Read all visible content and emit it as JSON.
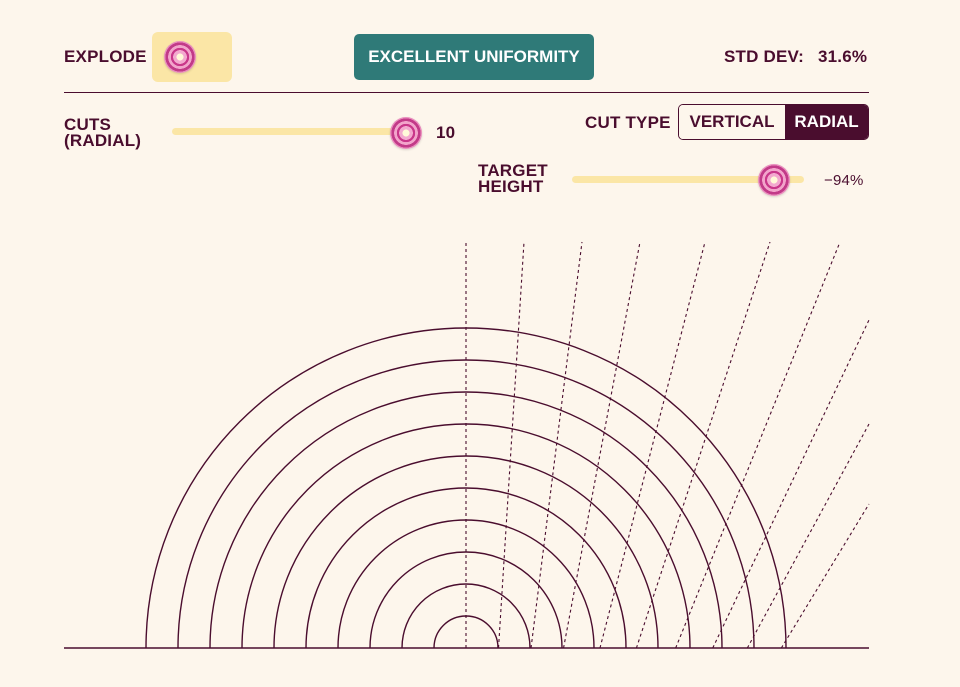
{
  "controls": {
    "explode_label": "EXPLODE",
    "explode_toggle_on": true,
    "status_badge": "EXCELLENT UNIFORMITY",
    "std_dev_label": "STD DEV:",
    "std_dev_value": "31.6%",
    "cuts_label_line1": "CUTS",
    "cuts_label_line2": "(RADIAL)",
    "cuts_value": "10",
    "cut_type_label": "CUT TYPE",
    "cut_type_options": [
      "VERTICAL",
      "RADIAL"
    ],
    "cut_type_selected": "RADIAL",
    "target_label_line1": "TARGET",
    "target_label_line2": "HEIGHT",
    "target_value": "−94%",
    "target_height_percent": -94
  },
  "visualization": {
    "layer_count": 10,
    "cut_count": 10
  },
  "colors": {
    "background": "#fdf6ec",
    "ink": "#4a0d2e",
    "badge": "#2f7a78",
    "slider_track": "#fbe6a6"
  }
}
